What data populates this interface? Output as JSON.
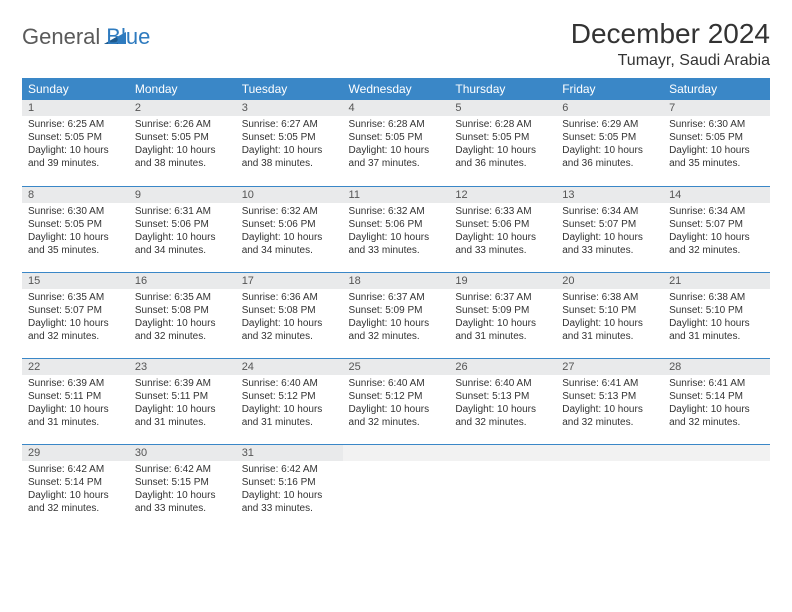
{
  "brand": {
    "part1": "General",
    "part2": "Blue"
  },
  "title": "December 2024",
  "location": "Tumayr, Saudi Arabia",
  "colors": {
    "header_bg": "#3a87c7",
    "daynum_bg": "#e9eaeb",
    "row_border": "#3a87c7",
    "brand_gray": "#5a5a5a",
    "brand_blue": "#2f7bbf"
  },
  "weekdays": [
    "Sunday",
    "Monday",
    "Tuesday",
    "Wednesday",
    "Thursday",
    "Friday",
    "Saturday"
  ],
  "weeks": [
    [
      {
        "num": "1",
        "sunrise": "6:25 AM",
        "sunset": "5:05 PM",
        "daylight": "10 hours and 39 minutes."
      },
      {
        "num": "2",
        "sunrise": "6:26 AM",
        "sunset": "5:05 PM",
        "daylight": "10 hours and 38 minutes."
      },
      {
        "num": "3",
        "sunrise": "6:27 AM",
        "sunset": "5:05 PM",
        "daylight": "10 hours and 38 minutes."
      },
      {
        "num": "4",
        "sunrise": "6:28 AM",
        "sunset": "5:05 PM",
        "daylight": "10 hours and 37 minutes."
      },
      {
        "num": "5",
        "sunrise": "6:28 AM",
        "sunset": "5:05 PM",
        "daylight": "10 hours and 36 minutes."
      },
      {
        "num": "6",
        "sunrise": "6:29 AM",
        "sunset": "5:05 PM",
        "daylight": "10 hours and 36 minutes."
      },
      {
        "num": "7",
        "sunrise": "6:30 AM",
        "sunset": "5:05 PM",
        "daylight": "10 hours and 35 minutes."
      }
    ],
    [
      {
        "num": "8",
        "sunrise": "6:30 AM",
        "sunset": "5:05 PM",
        "daylight": "10 hours and 35 minutes."
      },
      {
        "num": "9",
        "sunrise": "6:31 AM",
        "sunset": "5:06 PM",
        "daylight": "10 hours and 34 minutes."
      },
      {
        "num": "10",
        "sunrise": "6:32 AM",
        "sunset": "5:06 PM",
        "daylight": "10 hours and 34 minutes."
      },
      {
        "num": "11",
        "sunrise": "6:32 AM",
        "sunset": "5:06 PM",
        "daylight": "10 hours and 33 minutes."
      },
      {
        "num": "12",
        "sunrise": "6:33 AM",
        "sunset": "5:06 PM",
        "daylight": "10 hours and 33 minutes."
      },
      {
        "num": "13",
        "sunrise": "6:34 AM",
        "sunset": "5:07 PM",
        "daylight": "10 hours and 33 minutes."
      },
      {
        "num": "14",
        "sunrise": "6:34 AM",
        "sunset": "5:07 PM",
        "daylight": "10 hours and 32 minutes."
      }
    ],
    [
      {
        "num": "15",
        "sunrise": "6:35 AM",
        "sunset": "5:07 PM",
        "daylight": "10 hours and 32 minutes."
      },
      {
        "num": "16",
        "sunrise": "6:35 AM",
        "sunset": "5:08 PM",
        "daylight": "10 hours and 32 minutes."
      },
      {
        "num": "17",
        "sunrise": "6:36 AM",
        "sunset": "5:08 PM",
        "daylight": "10 hours and 32 minutes."
      },
      {
        "num": "18",
        "sunrise": "6:37 AM",
        "sunset": "5:09 PM",
        "daylight": "10 hours and 32 minutes."
      },
      {
        "num": "19",
        "sunrise": "6:37 AM",
        "sunset": "5:09 PM",
        "daylight": "10 hours and 31 minutes."
      },
      {
        "num": "20",
        "sunrise": "6:38 AM",
        "sunset": "5:10 PM",
        "daylight": "10 hours and 31 minutes."
      },
      {
        "num": "21",
        "sunrise": "6:38 AM",
        "sunset": "5:10 PM",
        "daylight": "10 hours and 31 minutes."
      }
    ],
    [
      {
        "num": "22",
        "sunrise": "6:39 AM",
        "sunset": "5:11 PM",
        "daylight": "10 hours and 31 minutes."
      },
      {
        "num": "23",
        "sunrise": "6:39 AM",
        "sunset": "5:11 PM",
        "daylight": "10 hours and 31 minutes."
      },
      {
        "num": "24",
        "sunrise": "6:40 AM",
        "sunset": "5:12 PM",
        "daylight": "10 hours and 31 minutes."
      },
      {
        "num": "25",
        "sunrise": "6:40 AM",
        "sunset": "5:12 PM",
        "daylight": "10 hours and 32 minutes."
      },
      {
        "num": "26",
        "sunrise": "6:40 AM",
        "sunset": "5:13 PM",
        "daylight": "10 hours and 32 minutes."
      },
      {
        "num": "27",
        "sunrise": "6:41 AM",
        "sunset": "5:13 PM",
        "daylight": "10 hours and 32 minutes."
      },
      {
        "num": "28",
        "sunrise": "6:41 AM",
        "sunset": "5:14 PM",
        "daylight": "10 hours and 32 minutes."
      }
    ],
    [
      {
        "num": "29",
        "sunrise": "6:42 AM",
        "sunset": "5:14 PM",
        "daylight": "10 hours and 32 minutes."
      },
      {
        "num": "30",
        "sunrise": "6:42 AM",
        "sunset": "5:15 PM",
        "daylight": "10 hours and 33 minutes."
      },
      {
        "num": "31",
        "sunrise": "6:42 AM",
        "sunset": "5:16 PM",
        "daylight": "10 hours and 33 minutes."
      },
      null,
      null,
      null,
      null
    ]
  ],
  "labels": {
    "sunrise": "Sunrise:",
    "sunset": "Sunset:",
    "daylight": "Daylight:"
  }
}
